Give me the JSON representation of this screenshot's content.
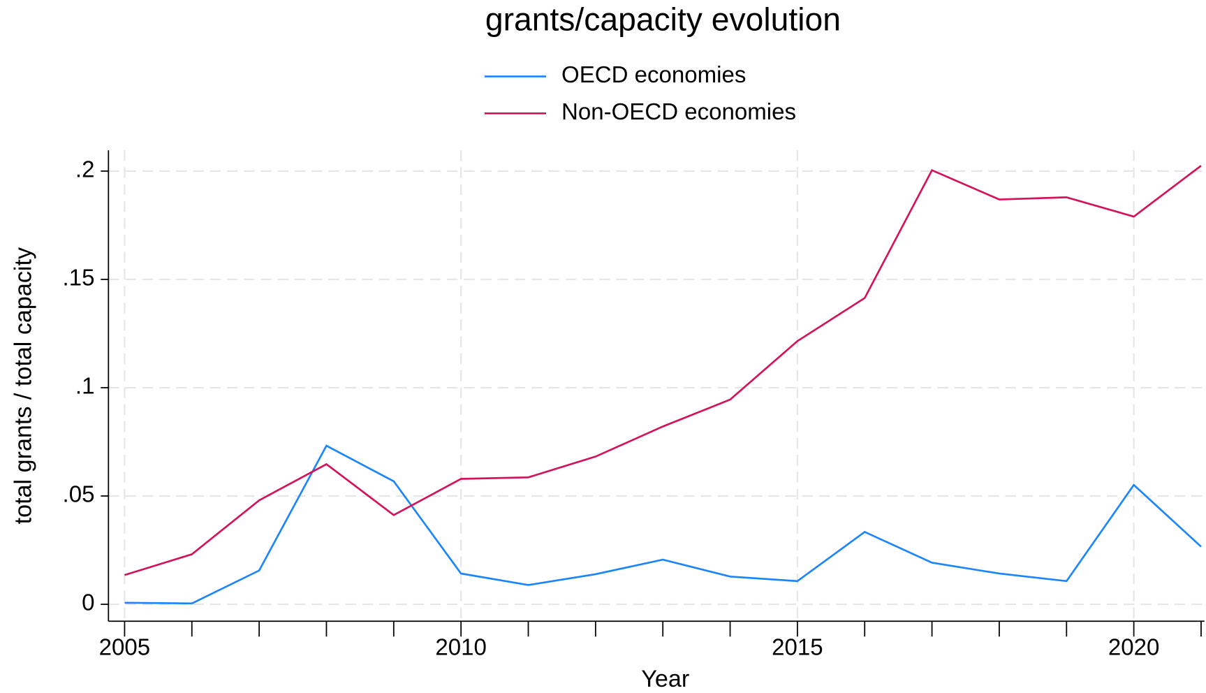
{
  "chart_data": {
    "type": "line",
    "title": "grants/capacity evolution",
    "x_label": "Year",
    "y_label": "total grants / total capacity",
    "x": [
      2005,
      2006,
      2007,
      2008,
      2009,
      2010,
      2011,
      2012,
      2013,
      2014,
      2015,
      2016,
      2017,
      2018,
      2019,
      2020,
      2021
    ],
    "series": [
      {
        "name": "OECD economies",
        "color": "#1a85ff",
        "values": [
          0.0007,
          0.0004,
          0.0156,
          0.0732,
          0.0568,
          0.0142,
          0.0089,
          0.0139,
          0.0206,
          0.0128,
          0.0107,
          0.0334,
          0.0192,
          0.0142,
          0.0107,
          0.0551,
          0.0266
        ]
      },
      {
        "name": "Non-OECD economies",
        "color": "#d41159",
        "values": [
          0.0135,
          0.0231,
          0.048,
          0.0647,
          0.0412,
          0.0579,
          0.0586,
          0.0682,
          0.0821,
          0.0945,
          0.1215,
          0.1414,
          0.2004,
          0.1869,
          0.1879,
          0.179,
          0.2025
        ]
      }
    ],
    "xlim": [
      2004.76,
      2021.05
    ],
    "ylim": [
      -0.0078,
      0.2096
    ],
    "xticks": [
      2005,
      2010,
      2015,
      2020
    ],
    "xminorticks": [
      2006,
      2007,
      2008,
      2009,
      2011,
      2012,
      2013,
      2014,
      2016,
      2017,
      2018,
      2019,
      2021
    ],
    "yticks": [
      0,
      {
        "value": 0.05,
        "label": ".05"
      },
      {
        "value": 0.1,
        "label": ".1"
      },
      {
        "value": 0.15,
        "label": ".15"
      },
      {
        "value": 0.2,
        "label": ".2"
      }
    ],
    "grid": true,
    "legend": "top"
  }
}
